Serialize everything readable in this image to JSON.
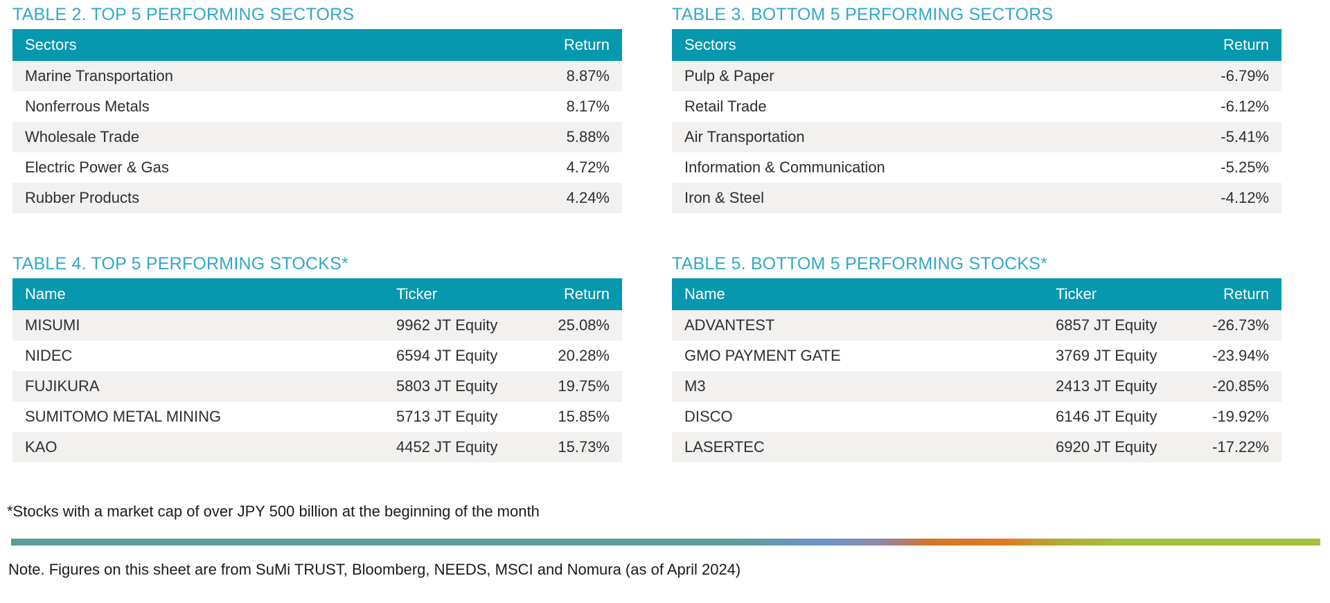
{
  "colors": {
    "title_text": "#31A8C9",
    "header_bg": "#0698AE",
    "header_text": "#FFFFFF",
    "row_alt_bg": "#F2F1F0",
    "body_text": "#2E2E2E",
    "divider_gradient": [
      "#5C9C98",
      "#6C95CB",
      "#9087A8",
      "#D2752A",
      "#DC7E22",
      "#B0AC35",
      "#A3C13C",
      "#A2C03A"
    ]
  },
  "tables": [
    {
      "title": "TABLE 2. TOP 5 PERFORMING SECTORS",
      "columns": [
        "Sectors",
        "Return"
      ],
      "rows": [
        {
          "name": "Marine Transportation",
          "return": "8.87%"
        },
        {
          "name": "Nonferrous Metals",
          "return": "8.17%"
        },
        {
          "name": "Wholesale Trade",
          "return": "5.88%"
        },
        {
          "name": "Electric Power & Gas",
          "return": "4.72%"
        },
        {
          "name": "Rubber Products",
          "return": "4.24%"
        }
      ]
    },
    {
      "title": "TABLE 3. BOTTOM 5 PERFORMING SECTORS",
      "columns": [
        "Sectors",
        "Return"
      ],
      "rows": [
        {
          "name": "Pulp & Paper",
          "return": "-6.79%"
        },
        {
          "name": "Retail Trade",
          "return": "-6.12%"
        },
        {
          "name": "Air Transportation",
          "return": "-5.41%"
        },
        {
          "name": "Information & Communication",
          "return": "-5.25%"
        },
        {
          "name": "Iron & Steel",
          "return": "-4.12%"
        }
      ]
    },
    {
      "title": "TABLE 4. TOP 5 PERFORMING STOCKS*",
      "columns": [
        "Name",
        "Ticker",
        "Return"
      ],
      "rows": [
        {
          "name": "MISUMI",
          "ticker": "9962 JT Equity",
          "return": "25.08%"
        },
        {
          "name": "NIDEC",
          "ticker": "6594 JT Equity",
          "return": "20.28%"
        },
        {
          "name": "FUJIKURA",
          "ticker": "5803 JT Equity",
          "return": "19.75%"
        },
        {
          "name": "SUMITOMO METAL MINING",
          "ticker": "5713 JT Equity",
          "return": "15.85%"
        },
        {
          "name": "KAO",
          "ticker": "4452 JT Equity",
          "return": "15.73%"
        }
      ]
    },
    {
      "title": "TABLE 5. BOTTOM 5 PERFORMING STOCKS*",
      "columns": [
        "Name",
        "Ticker",
        "Return"
      ],
      "rows": [
        {
          "name": "ADVANTEST",
          "ticker": "6857 JT Equity",
          "return": "-26.73%"
        },
        {
          "name": "GMO PAYMENT GATE",
          "ticker": "3769 JT Equity",
          "return": "-23.94%"
        },
        {
          "name": "M3",
          "ticker": "2413 JT Equity",
          "return": "-20.85%"
        },
        {
          "name": "DISCO",
          "ticker": "6146 JT Equity",
          "return": "-19.92%"
        },
        {
          "name": "LASERTEC",
          "ticker": "6920 JT Equity",
          "return": "-17.22%"
        }
      ]
    }
  ],
  "page": {
    "footnote": "*Stocks with a market cap of over JPY 500 billion at the beginning of the month",
    "note": "Note. Figures on this sheet are from SuMi TRUST, Bloomberg, NEEDS, MSCI and Nomura (as of April 2024)"
  }
}
